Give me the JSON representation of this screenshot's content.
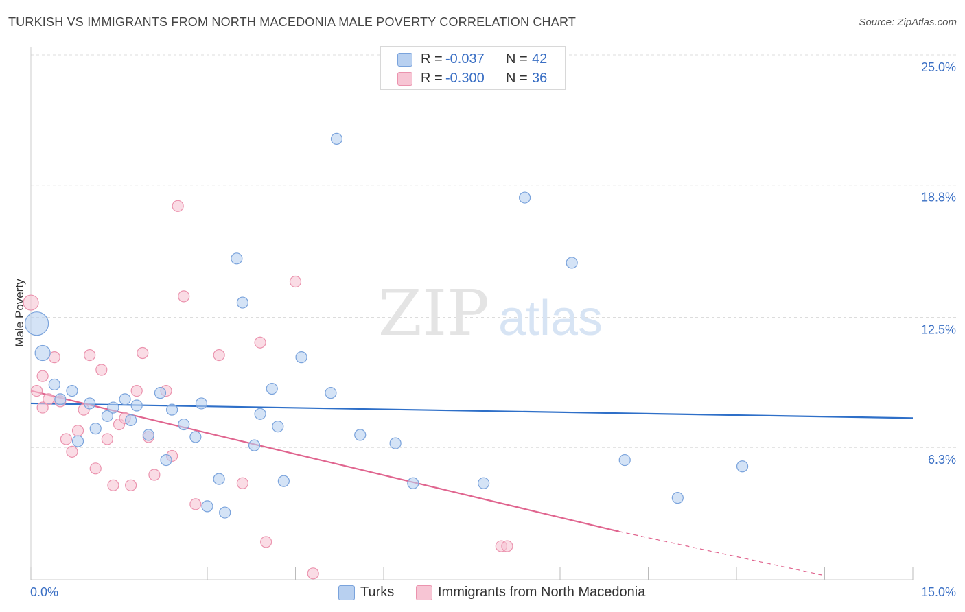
{
  "header": {
    "title": "TURKISH VS IMMIGRANTS FROM NORTH MACEDONIA MALE POVERTY CORRELATION CHART",
    "source": "Source: ZipAtlas.com"
  },
  "watermark": {
    "zip": "ZIP",
    "atlas": "atlas"
  },
  "stats_legend": [
    {
      "r_label": "R =",
      "r_value": "-0.037",
      "n_label": "N =",
      "n_value": "42"
    },
    {
      "r_label": "R =",
      "r_value": "-0.300",
      "n_label": "N =",
      "n_value": "36"
    }
  ],
  "colors": {
    "turks_fill": "#b8d0f0",
    "turks_stroke": "#7aa3dc",
    "turks_line": "#2e6fc8",
    "mac_fill": "#f7c5d4",
    "mac_stroke": "#eb93ae",
    "mac_line": "#e0658f",
    "axis_label": "#3a6fc4",
    "grid": "#dcdcdc"
  },
  "chart_data": {
    "type": "scatter",
    "title": "TURKISH VS IMMIGRANTS FROM NORTH MACEDONIA MALE POVERTY CORRELATION CHART",
    "ylabel": "Male Poverty",
    "xlabel": "",
    "xlim": [
      0,
      15
    ],
    "ylim": [
      0,
      25
    ],
    "x_tick_labels": [
      "0.0%",
      "15.0%"
    ],
    "y_ticks": [
      6.3,
      12.5,
      18.8,
      25.0
    ],
    "y_tick_labels": [
      "6.3%",
      "12.5%",
      "18.8%",
      "25.0%"
    ],
    "grid": "horizontal dashed",
    "legend": "top-center and bottom",
    "series": [
      {
        "name": "Turks",
        "r": -0.037,
        "n": 42,
        "trend": {
          "x": [
            0,
            15
          ],
          "y": [
            8.4,
            7.7
          ]
        },
        "points": [
          {
            "x": 0.1,
            "y": 12.2,
            "s": 3
          },
          {
            "x": 0.2,
            "y": 10.8,
            "s": 2
          },
          {
            "x": 0.4,
            "y": 9.3,
            "s": 1
          },
          {
            "x": 0.5,
            "y": 8.6,
            "s": 1
          },
          {
            "x": 0.7,
            "y": 9.0,
            "s": 1
          },
          {
            "x": 0.8,
            "y": 6.6,
            "s": 1
          },
          {
            "x": 1.0,
            "y": 8.4,
            "s": 1
          },
          {
            "x": 1.1,
            "y": 7.2,
            "s": 1
          },
          {
            "x": 1.3,
            "y": 7.8,
            "s": 1
          },
          {
            "x": 1.4,
            "y": 8.2,
            "s": 1
          },
          {
            "x": 1.6,
            "y": 8.6,
            "s": 1
          },
          {
            "x": 1.7,
            "y": 7.6,
            "s": 1
          },
          {
            "x": 1.8,
            "y": 8.3,
            "s": 1
          },
          {
            "x": 2.0,
            "y": 6.9,
            "s": 1
          },
          {
            "x": 2.2,
            "y": 8.9,
            "s": 1
          },
          {
            "x": 2.3,
            "y": 5.7,
            "s": 1
          },
          {
            "x": 2.4,
            "y": 8.1,
            "s": 1
          },
          {
            "x": 2.6,
            "y": 7.4,
            "s": 1
          },
          {
            "x": 2.8,
            "y": 6.8,
            "s": 1
          },
          {
            "x": 2.9,
            "y": 8.4,
            "s": 1
          },
          {
            "x": 3.0,
            "y": 3.5,
            "s": 1
          },
          {
            "x": 3.2,
            "y": 4.8,
            "s": 1
          },
          {
            "x": 3.3,
            "y": 3.2,
            "s": 1
          },
          {
            "x": 3.5,
            "y": 15.3,
            "s": 1
          },
          {
            "x": 3.6,
            "y": 13.2,
            "s": 1
          },
          {
            "x": 3.8,
            "y": 6.4,
            "s": 1
          },
          {
            "x": 3.9,
            "y": 7.9,
            "s": 1
          },
          {
            "x": 4.1,
            "y": 9.1,
            "s": 1
          },
          {
            "x": 4.2,
            "y": 7.3,
            "s": 1
          },
          {
            "x": 4.3,
            "y": 4.7,
            "s": 1
          },
          {
            "x": 4.6,
            "y": 10.6,
            "s": 1
          },
          {
            "x": 5.1,
            "y": 8.9,
            "s": 1
          },
          {
            "x": 5.2,
            "y": 21.0,
            "s": 1
          },
          {
            "x": 5.6,
            "y": 6.9,
            "s": 1
          },
          {
            "x": 6.2,
            "y": 6.5,
            "s": 1
          },
          {
            "x": 6.5,
            "y": 4.6,
            "s": 1
          },
          {
            "x": 7.7,
            "y": 4.6,
            "s": 1
          },
          {
            "x": 8.4,
            "y": 18.2,
            "s": 1
          },
          {
            "x": 9.2,
            "y": 15.1,
            "s": 1
          },
          {
            "x": 10.1,
            "y": 5.7,
            "s": 1
          },
          {
            "x": 11.0,
            "y": 3.9,
            "s": 1
          },
          {
            "x": 12.1,
            "y": 5.4,
            "s": 1
          }
        ]
      },
      {
        "name": "Immigrants from North Macedonia",
        "r": -0.3,
        "n": 36,
        "trend": {
          "x": [
            0,
            10.0
          ],
          "y": [
            9.0,
            2.3
          ]
        },
        "trend_dashed": {
          "x": [
            10.0,
            15.0
          ],
          "y": [
            2.3,
            -0.7
          ]
        },
        "points": [
          {
            "x": 0.0,
            "y": 13.2,
            "s": 2
          },
          {
            "x": 0.1,
            "y": 9.0,
            "s": 1
          },
          {
            "x": 0.2,
            "y": 9.7,
            "s": 1
          },
          {
            "x": 0.2,
            "y": 8.2,
            "s": 1
          },
          {
            "x": 0.3,
            "y": 8.6,
            "s": 1
          },
          {
            "x": 0.4,
            "y": 10.6,
            "s": 1
          },
          {
            "x": 0.5,
            "y": 8.5,
            "s": 1
          },
          {
            "x": 0.6,
            "y": 6.7,
            "s": 1
          },
          {
            "x": 0.7,
            "y": 6.1,
            "s": 1
          },
          {
            "x": 0.8,
            "y": 7.1,
            "s": 1
          },
          {
            "x": 0.9,
            "y": 8.1,
            "s": 1
          },
          {
            "x": 1.0,
            "y": 10.7,
            "s": 1
          },
          {
            "x": 1.1,
            "y": 5.3,
            "s": 1
          },
          {
            "x": 1.2,
            "y": 10.0,
            "s": 1
          },
          {
            "x": 1.3,
            "y": 6.7,
            "s": 1
          },
          {
            "x": 1.4,
            "y": 4.5,
            "s": 1
          },
          {
            "x": 1.5,
            "y": 7.4,
            "s": 1
          },
          {
            "x": 1.6,
            "y": 7.7,
            "s": 1
          },
          {
            "x": 1.7,
            "y": 4.5,
            "s": 1
          },
          {
            "x": 1.8,
            "y": 9.0,
            "s": 1
          },
          {
            "x": 1.9,
            "y": 10.8,
            "s": 1
          },
          {
            "x": 2.0,
            "y": 6.8,
            "s": 1
          },
          {
            "x": 2.1,
            "y": 5.0,
            "s": 1
          },
          {
            "x": 2.3,
            "y": 9.0,
            "s": 1
          },
          {
            "x": 2.4,
            "y": 5.9,
            "s": 1
          },
          {
            "x": 2.5,
            "y": 17.8,
            "s": 1
          },
          {
            "x": 2.6,
            "y": 13.5,
            "s": 1
          },
          {
            "x": 2.8,
            "y": 3.6,
            "s": 1
          },
          {
            "x": 3.2,
            "y": 10.7,
            "s": 1
          },
          {
            "x": 3.6,
            "y": 4.6,
            "s": 1
          },
          {
            "x": 3.9,
            "y": 11.3,
            "s": 1
          },
          {
            "x": 4.0,
            "y": 1.8,
            "s": 1
          },
          {
            "x": 4.5,
            "y": 14.2,
            "s": 1
          },
          {
            "x": 4.8,
            "y": 0.3,
            "s": 1
          },
          {
            "x": 8.0,
            "y": 1.6,
            "s": 1
          },
          {
            "x": 8.1,
            "y": 1.6,
            "s": 1
          }
        ]
      }
    ]
  }
}
